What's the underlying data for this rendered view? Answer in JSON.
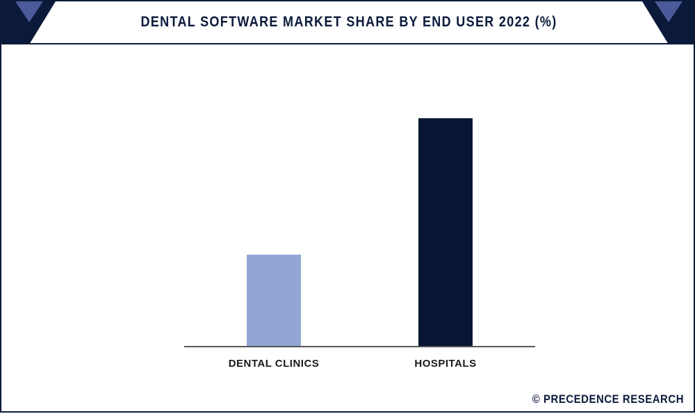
{
  "title": "DENTAL SOFTWARE MARKET SHARE BY END USER 2022 (%)",
  "credit": "© PRECEDENCE RESEARCH",
  "colors": {
    "navy": "#0b1a3a",
    "accent": "#4a5a9a",
    "bar_light": "#91a6d3",
    "bar_dark": "#081533"
  },
  "chart_data": {
    "type": "bar",
    "title": "DENTAL SOFTWARE MARKET SHARE BY END USER 2022 (%)",
    "categories": [
      "DENTAL CLINICS",
      "HOSPITALS"
    ],
    "values": [
      31,
      77
    ],
    "ylim": [
      0,
      100
    ],
    "xlabel": "",
    "ylabel": "",
    "grid": false,
    "legend": "none"
  }
}
